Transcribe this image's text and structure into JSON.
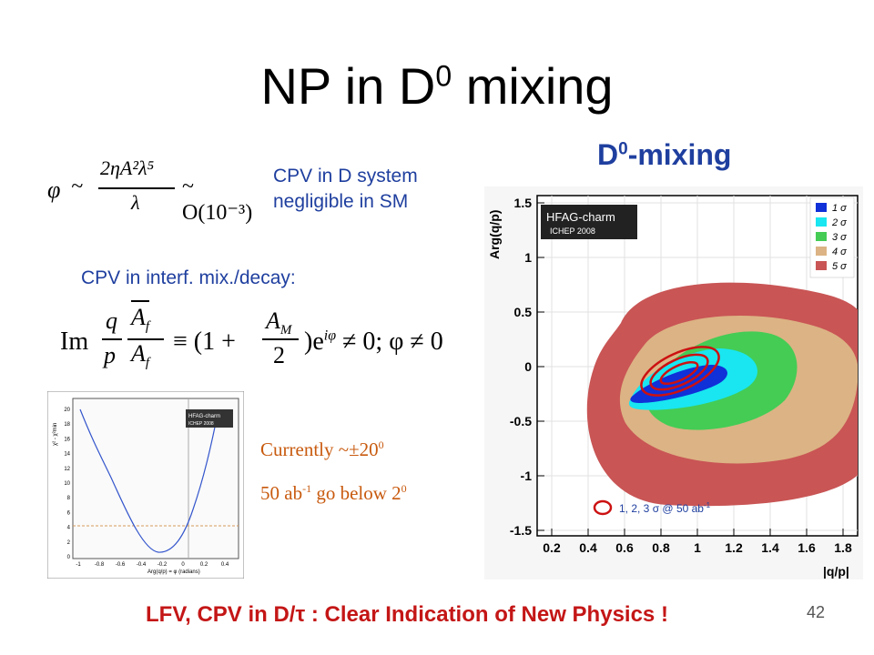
{
  "slide": {
    "title_main": "NP in D",
    "title_sup": "0",
    "title_tail": " mixing",
    "heading_main": "D",
    "heading_sup": "0",
    "heading_tail": "-mixing",
    "cpv_note_line1": "CPV in D system",
    "cpv_note_line2": "negligible in SM",
    "interf_label": "CPV in interf. mix./decay:",
    "currently": "Currently ~±20",
    "currently_sup": "0",
    "future_pre": "50 ab",
    "future_sup": "-1",
    "future_mid": " go below 2",
    "future_sup2": "0",
    "conclusion": "LFV, CPV in D/τ : Clear Indication of New Physics !",
    "page_number": "42"
  },
  "formula1": {
    "phi": "φ",
    "sim": "~",
    "num": "2ηA²λ⁵",
    "den": "λ",
    "rhs": "~ O(10⁻³)"
  },
  "formula2": {
    "im": "Im",
    "q": "q",
    "p": "p",
    "af_bar": "A",
    "af_sub": "f",
    "equiv": "≡ (1 +",
    "am": "A",
    "am_sub": "M",
    "two": "2",
    "tail": ")e",
    "tail_sup": "iφ",
    "tail2": " ≠ 0; φ ≠ 0"
  },
  "main_plot": {
    "ylabel": "Arg(q/p)",
    "xlabel": "|q/p|",
    "x_ticks": [
      "0.2",
      "0.4",
      "0.6",
      "0.8",
      "1",
      "1.2",
      "1.4",
      "1.6",
      "1.8"
    ],
    "y_ticks": [
      "1.5",
      "1",
      "0.5",
      "0",
      "-0.5",
      "-1",
      "-1.5"
    ],
    "hfag_line1": "HFAG-charm",
    "hfag_line2": "ICHEP 2008",
    "legend": [
      {
        "label": "1 σ",
        "color": "#1030d8"
      },
      {
        "label": "2 σ",
        "color": "#19e6f0"
      },
      {
        "label": "3 σ",
        "color": "#44cc55"
      },
      {
        "label": "4 σ",
        "color": "#dcb384"
      },
      {
        "label": "5 σ",
        "color": "#c95555"
      }
    ],
    "future_label": "1, 2, 3 σ @ 50 ab",
    "future_sup": "-1"
  },
  "small_plot": {
    "ylabel": "χ² - χ²min",
    "xlabel": "Arg(q/p) = φ (radians)",
    "x_ticks": [
      "-1",
      "-0.8",
      "-0.6",
      "-0.4",
      "-0.2",
      "0",
      "0.2",
      "0.4"
    ],
    "y_ticks": [
      "20",
      "18",
      "16",
      "14",
      "12",
      "10",
      "8",
      "6",
      "4",
      "2",
      "0"
    ],
    "hfag_line1": "HFAG-charm",
    "hfag_line2": "ICHEP 2008"
  }
}
